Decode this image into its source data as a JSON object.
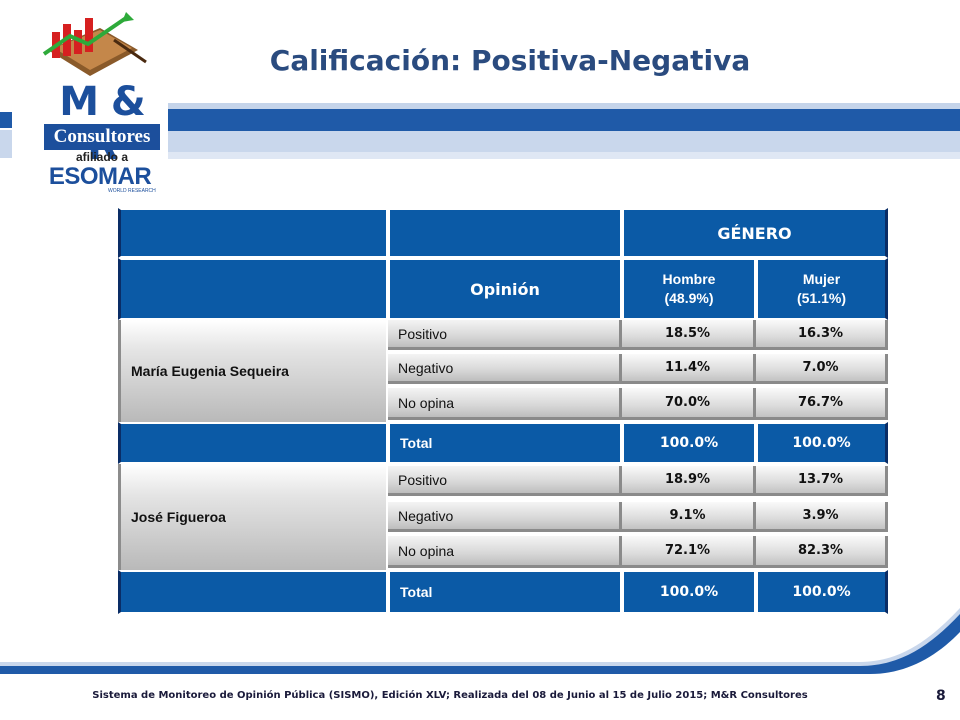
{
  "logo": {
    "brand": "M & R",
    "consultores": "Consultores",
    "afiliado": "afiliado a",
    "esomar": "ESOMAR",
    "world_research": "WORLD RESEARCH"
  },
  "title": "Calificación: Positiva-Negativa",
  "table": {
    "group_header": "GÉNERO",
    "opinion_header": "Opinión",
    "col_hombre": "Hombre",
    "col_hombre_pct": "(48.9%)",
    "col_mujer": "Mujer",
    "col_mujer_pct": "(51.1%)",
    "blocks": [
      {
        "name": "María Eugenia Sequeira",
        "rows": [
          {
            "opinion": "Positivo",
            "hombre": "18.5%",
            "mujer": "16.3%"
          },
          {
            "opinion": "Negativo",
            "hombre": "11.4%",
            "mujer": "7.0%"
          },
          {
            "opinion": "No opina",
            "hombre": "70.0%",
            "mujer": "76.7%"
          }
        ],
        "total": {
          "label": "Total",
          "hombre": "100.0%",
          "mujer": "100.0%"
        }
      },
      {
        "name": "José Figueroa",
        "rows": [
          {
            "opinion": "Positivo",
            "hombre": "18.9%",
            "mujer": "13.7%"
          },
          {
            "opinion": "Negativo",
            "hombre": "9.1%",
            "mujer": "3.9%"
          },
          {
            "opinion": "No opina",
            "hombre": "72.1%",
            "mujer": "82.3%"
          }
        ],
        "total": {
          "label": "Total",
          "hombre": "100.0%",
          "mujer": "100.0%"
        }
      }
    ]
  },
  "footer": {
    "text": "Sistema de Monitoreo de Opinión Pública (SISMO), Edición XLV; Realizada del 08 de Junio al 15 de Julio 2015; M&R Consultores",
    "page": "8"
  },
  "colors": {
    "brand_blue": "#1c4f9c",
    "table_blue": "#0b5aa6",
    "title": "#2a4b7f"
  }
}
